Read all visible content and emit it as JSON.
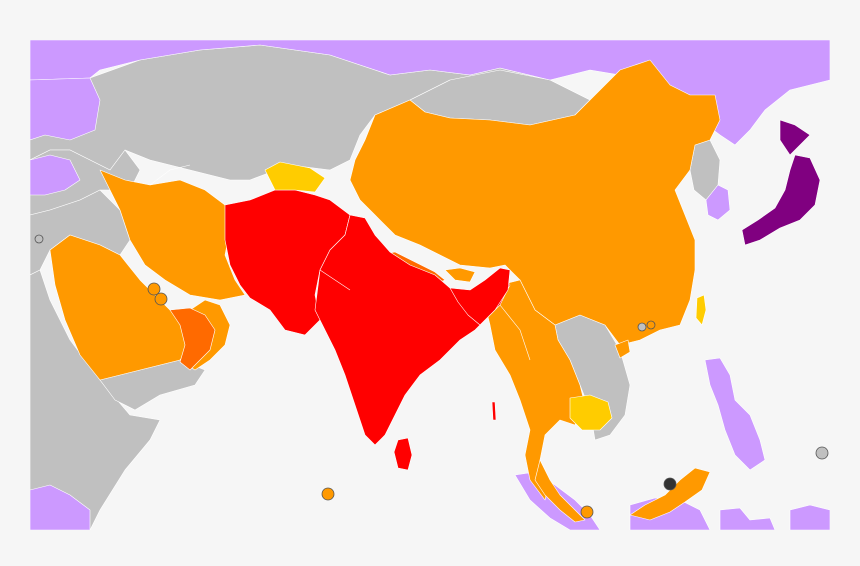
{
  "map": {
    "colors": {
      "background": "#f6f6f6",
      "neutral": "#c0c0c0",
      "lavender": "#cc99ff",
      "orange": "#ff9900",
      "dark_orange": "#ff6a00",
      "red": "#ff0000",
      "yellow": "#ffcc00",
      "purple": "#800080",
      "marker_dark": "#333333",
      "marker_grey": "#c0c0c0",
      "marker_orange": "#ff9900"
    }
  }
}
